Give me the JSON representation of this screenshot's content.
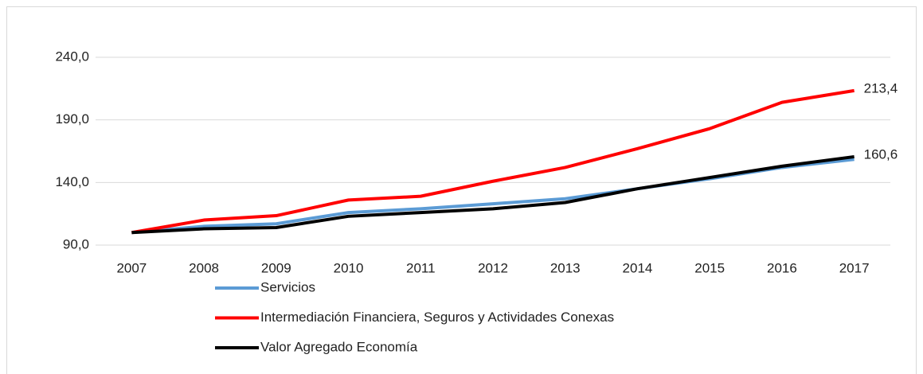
{
  "chart_data": {
    "type": "line",
    "categories": [
      "2007",
      "2008",
      "2009",
      "2010",
      "2011",
      "2012",
      "2013",
      "2014",
      "2015",
      "2016",
      "2017"
    ],
    "series": [
      {
        "name": "Servicios",
        "color": "#5b9bd5",
        "values": [
          100,
          105,
          107,
          116,
          119,
          123,
          127,
          135,
          143,
          152,
          158.5
        ]
      },
      {
        "name": "Intermediación Financiera, Seguros y Actividades Conexas",
        "color": "#ff0000",
        "values": [
          100,
          110,
          113.5,
          126,
          129,
          141,
          152,
          167,
          183,
          204,
          213.4
        ],
        "value_labels": [
          null,
          null,
          null,
          null,
          null,
          null,
          null,
          null,
          null,
          null,
          "213,4"
        ]
      },
      {
        "name": "Valor Agregado Economía",
        "color": "#000000",
        "values": [
          100,
          103,
          104,
          113,
          116,
          119,
          124,
          135,
          144,
          153,
          160.6
        ],
        "value_labels": [
          null,
          null,
          null,
          null,
          null,
          null,
          null,
          null,
          null,
          null,
          "160,6"
        ]
      }
    ],
    "ylim": [
      90,
      240
    ],
    "yticks": [
      {
        "value": 90,
        "label": "90,0"
      },
      {
        "value": 140,
        "label": "140,0"
      },
      {
        "value": 190,
        "label": "190,0"
      },
      {
        "value": 240,
        "label": "240,0"
      }
    ],
    "grid": true
  }
}
